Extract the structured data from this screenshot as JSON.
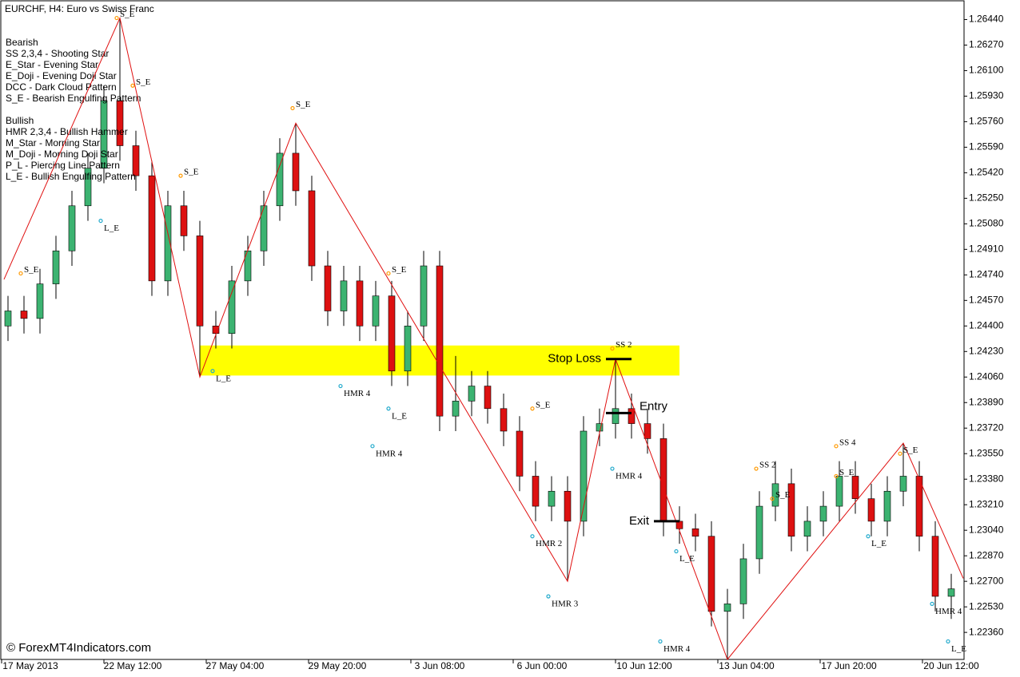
{
  "chart_data": {
    "type": "candlestick",
    "title": "EURCHF, H4:  Euro vs Swiss Franc",
    "watermark": "© ForexMT4Indicators.com",
    "legend_groups": [
      {
        "heading": "Bearish",
        "lines": [
          "SS 2,3,4 - Shooting Star",
          "E_Star   - Evening Star",
          "E_Doji   - Evening Doji Star",
          "DCC      - Dark Cloud Pattern",
          "S_E      - Bearish Engulfing Pattern"
        ]
      },
      {
        "heading": "Bullish",
        "lines": [
          "HMR 2,3,4 - Bullish Hammer",
          "M_Star    - Morning Star",
          "M_Doji    - Morning Doji Star",
          "P_L       - Piercing Line Pattern",
          "L_E       - Bullish Engulfing Pattern"
        ]
      }
    ],
    "x_labels": [
      "17 May 2013",
      "22 May 12:00",
      "27 May 04:00",
      "29 May 20:00",
      "3 Jun 08:00",
      "6 Jun 00:00",
      "10 Jun 12:00",
      "13 Jun 04:00",
      "17 Jun 20:00",
      "20 Jun 12:00"
    ],
    "open": [
      1.244,
      1.245,
      1.2445,
      1.2468,
      1.249,
      1.252,
      1.2545,
      1.259,
      1.256,
      1.254,
      1.247,
      1.252,
      1.25,
      1.244,
      1.2435,
      1.247,
      1.249,
      1.252,
      1.2555,
      1.253,
      1.248,
      1.245,
      1.247,
      1.244,
      1.246,
      1.241,
      1.244,
      1.248,
      1.238,
      1.239,
      1.24,
      1.2385,
      1.237,
      1.234,
      1.232,
      1.233,
      1.231,
      1.237,
      1.2375,
      1.2385,
      1.2375,
      1.2365,
      1.231,
      1.2305,
      1.23,
      1.225,
      1.2255,
      1.2285,
      1.232,
      1.2335,
      1.23,
      1.231,
      1.232,
      1.234,
      1.2325,
      1.231,
      1.233,
      1.234,
      1.23,
      1.226
    ],
    "high": [
      1.246,
      1.246,
      1.2478,
      1.25,
      1.253,
      1.2555,
      1.26,
      1.2645,
      1.257,
      1.255,
      1.253,
      1.253,
      1.251,
      1.245,
      1.248,
      1.25,
      1.253,
      1.2565,
      1.2575,
      1.254,
      1.249,
      1.248,
      1.248,
      1.247,
      1.247,
      1.245,
      1.249,
      1.249,
      1.242,
      1.241,
      1.241,
      1.2395,
      1.238,
      1.235,
      1.234,
      1.234,
      1.238,
      1.2385,
      1.2418,
      1.2395,
      1.2385,
      1.2375,
      1.232,
      1.2315,
      1.231,
      1.2265,
      1.2295,
      1.233,
      1.235,
      1.2345,
      1.232,
      1.233,
      1.235,
      1.235,
      1.2335,
      1.234,
      1.2362,
      1.235,
      1.231,
      1.2275
    ],
    "low": [
      1.243,
      1.2435,
      1.2435,
      1.2458,
      1.248,
      1.251,
      1.2535,
      1.255,
      1.253,
      1.246,
      1.246,
      1.249,
      1.2406,
      1.2425,
      1.2425,
      1.246,
      1.248,
      1.251,
      1.252,
      1.247,
      1.244,
      1.244,
      1.243,
      1.243,
      1.24,
      1.24,
      1.243,
      1.237,
      1.237,
      1.238,
      1.2375,
      1.236,
      1.233,
      1.231,
      1.231,
      1.227,
      1.23,
      1.236,
      1.2365,
      1.2365,
      1.2355,
      1.23,
      1.2295,
      1.229,
      1.224,
      1.2218,
      1.2245,
      1.2275,
      1.231,
      1.229,
      1.229,
      1.23,
      1.231,
      1.2315,
      1.23,
      1.23,
      1.232,
      1.229,
      1.225,
      1.2245
    ],
    "close": [
      1.245,
      1.2445,
      1.2468,
      1.249,
      1.252,
      1.2545,
      1.259,
      1.256,
      1.254,
      1.247,
      1.252,
      1.25,
      1.244,
      1.2435,
      1.247,
      1.249,
      1.252,
      1.2555,
      1.253,
      1.248,
      1.245,
      1.247,
      1.244,
      1.246,
      1.241,
      1.244,
      1.248,
      1.238,
      1.239,
      1.24,
      1.2385,
      1.237,
      1.234,
      1.232,
      1.233,
      1.231,
      1.237,
      1.2375,
      1.2385,
      1.2375,
      1.2365,
      1.231,
      1.2305,
      1.23,
      1.225,
      1.2255,
      1.2285,
      1.232,
      1.2335,
      1.23,
      1.231,
      1.232,
      1.234,
      1.2325,
      1.231,
      1.233,
      1.234,
      1.23,
      1.226,
      1.2265
    ],
    "up_color": "#3cb371",
    "down_color": "#dd1111",
    "zigzag": {
      "color": "#e01010",
      "x": [
        -0.25,
        7,
        12,
        18,
        35,
        38,
        45,
        56,
        59.75
      ],
      "values": [
        1.2471,
        1.2645,
        1.2406,
        1.2575,
        1.227,
        1.2418,
        1.2218,
        1.2362,
        1.2272
      ]
    },
    "zone": {
      "color": "#ffff00",
      "x": [
        12,
        42
      ],
      "values": [
        1.2407,
        1.2427
      ]
    },
    "levels": [
      {
        "text": "Stop Loss",
        "x": 38,
        "value": 1.2418
      },
      {
        "text": "Entry",
        "x": 38,
        "value": 1.2382
      },
      {
        "text": "Exit",
        "x": 41,
        "value": 1.231
      }
    ],
    "annotations": [
      {
        "text": "S_E",
        "x": 7,
        "value": 1.2645,
        "color": "#e01010"
      },
      {
        "text": "S_E",
        "x": 8,
        "value": 1.26,
        "color": "#e01010"
      },
      {
        "text": "S_E",
        "x": 11,
        "value": 1.254,
        "color": "#e01010"
      },
      {
        "text": "S_E",
        "x": 1,
        "value": 1.2475,
        "color": "#e01010"
      },
      {
        "text": "L_E",
        "x": 6,
        "value": 1.251,
        "color": "#1010d0"
      },
      {
        "text": "L_E",
        "x": 13,
        "value": 1.241,
        "color": "#1010d0"
      },
      {
        "text": "S_E",
        "x": 18,
        "value": 1.2585,
        "color": "#e01010"
      },
      {
        "text": "HMR 4",
        "x": 21,
        "value": 1.24,
        "color": "#1010d0"
      },
      {
        "text": "S_E",
        "x": 24,
        "value": 1.2475,
        "color": "#e01010"
      },
      {
        "text": "L_E",
        "x": 24,
        "value": 1.2385,
        "color": "#1010d0"
      },
      {
        "text": "HMR 4",
        "x": 23,
        "value": 1.236,
        "color": "#1010d0"
      },
      {
        "text": "S_E",
        "x": 33,
        "value": 1.2385,
        "color": "#e01010"
      },
      {
        "text": "HMR 2",
        "x": 33,
        "value": 1.23,
        "color": "#1010d0"
      },
      {
        "text": "HMR 3",
        "x": 34,
        "value": 1.226,
        "color": "#1010d0"
      },
      {
        "text": "SS 2",
        "x": 38,
        "value": 1.2425,
        "color": "#e0106a"
      },
      {
        "text": "HMR 4",
        "x": 38,
        "value": 1.2345,
        "color": "#1010d0"
      },
      {
        "text": "L_E",
        "x": 42,
        "value": 1.229,
        "color": "#1010d0"
      },
      {
        "text": "HMR 4",
        "x": 41,
        "value": 1.223,
        "color": "#1010d0"
      },
      {
        "text": "SS 2",
        "x": 47,
        "value": 1.2345,
        "color": "#e0106a"
      },
      {
        "text": "S_E",
        "x": 48,
        "value": 1.2325,
        "color": "#e01010"
      },
      {
        "text": "SS 4",
        "x": 52,
        "value": 1.236,
        "color": "#e0106a"
      },
      {
        "text": "S_E",
        "x": 52,
        "value": 1.234,
        "color": "#e01010"
      },
      {
        "text": "L_E",
        "x": 54,
        "value": 1.23,
        "color": "#1010d0"
      },
      {
        "text": "S_E",
        "x": 56,
        "value": 1.2355,
        "color": "#e01010"
      },
      {
        "text": "HMR 4",
        "x": 58,
        "value": 1.2255,
        "color": "#1010d0"
      },
      {
        "text": "L_E",
        "x": 59,
        "value": 1.223,
        "color": "#1010d0"
      }
    ],
    "ylim": [
      1.2218,
      1.2657
    ],
    "yticks": [
      {
        "value": 1.2236,
        "label": "1.22360"
      },
      {
        "value": 1.2253,
        "label": "1.22530"
      },
      {
        "value": 1.227,
        "label": "1.22700"
      },
      {
        "value": 1.2287,
        "label": "1.22870"
      },
      {
        "value": 1.2304,
        "label": "1.23040"
      },
      {
        "value": 1.2321,
        "label": "1.23210"
      },
      {
        "value": 1.2338,
        "label": "1.23380"
      },
      {
        "value": 1.2355,
        "label": "1.23550"
      },
      {
        "value": 1.2372,
        "label": "1.23720"
      },
      {
        "value": 1.2389,
        "label": "1.23890"
      },
      {
        "value": 1.2406,
        "label": "1.24060"
      },
      {
        "value": 1.2423,
        "label": "1.24230"
      },
      {
        "value": 1.244,
        "label": "1.24400"
      },
      {
        "value": 1.2457,
        "label": "1.24570"
      },
      {
        "value": 1.2474,
        "label": "1.24740"
      },
      {
        "value": 1.2491,
        "label": "1.24910"
      },
      {
        "value": 1.2508,
        "label": "1.25080"
      },
      {
        "value": 1.2525,
        "label": "1.25250"
      },
      {
        "value": 1.2542,
        "label": "1.25420"
      },
      {
        "value": 1.2559,
        "label": "1.25590"
      },
      {
        "value": 1.2576,
        "label": "1.25760"
      },
      {
        "value": 1.2593,
        "label": "1.25930"
      },
      {
        "value": 1.261,
        "label": "1.26100"
      },
      {
        "value": 1.2627,
        "label": "1.26270"
      },
      {
        "value": 1.2644,
        "label": "1.26440"
      }
    ]
  }
}
